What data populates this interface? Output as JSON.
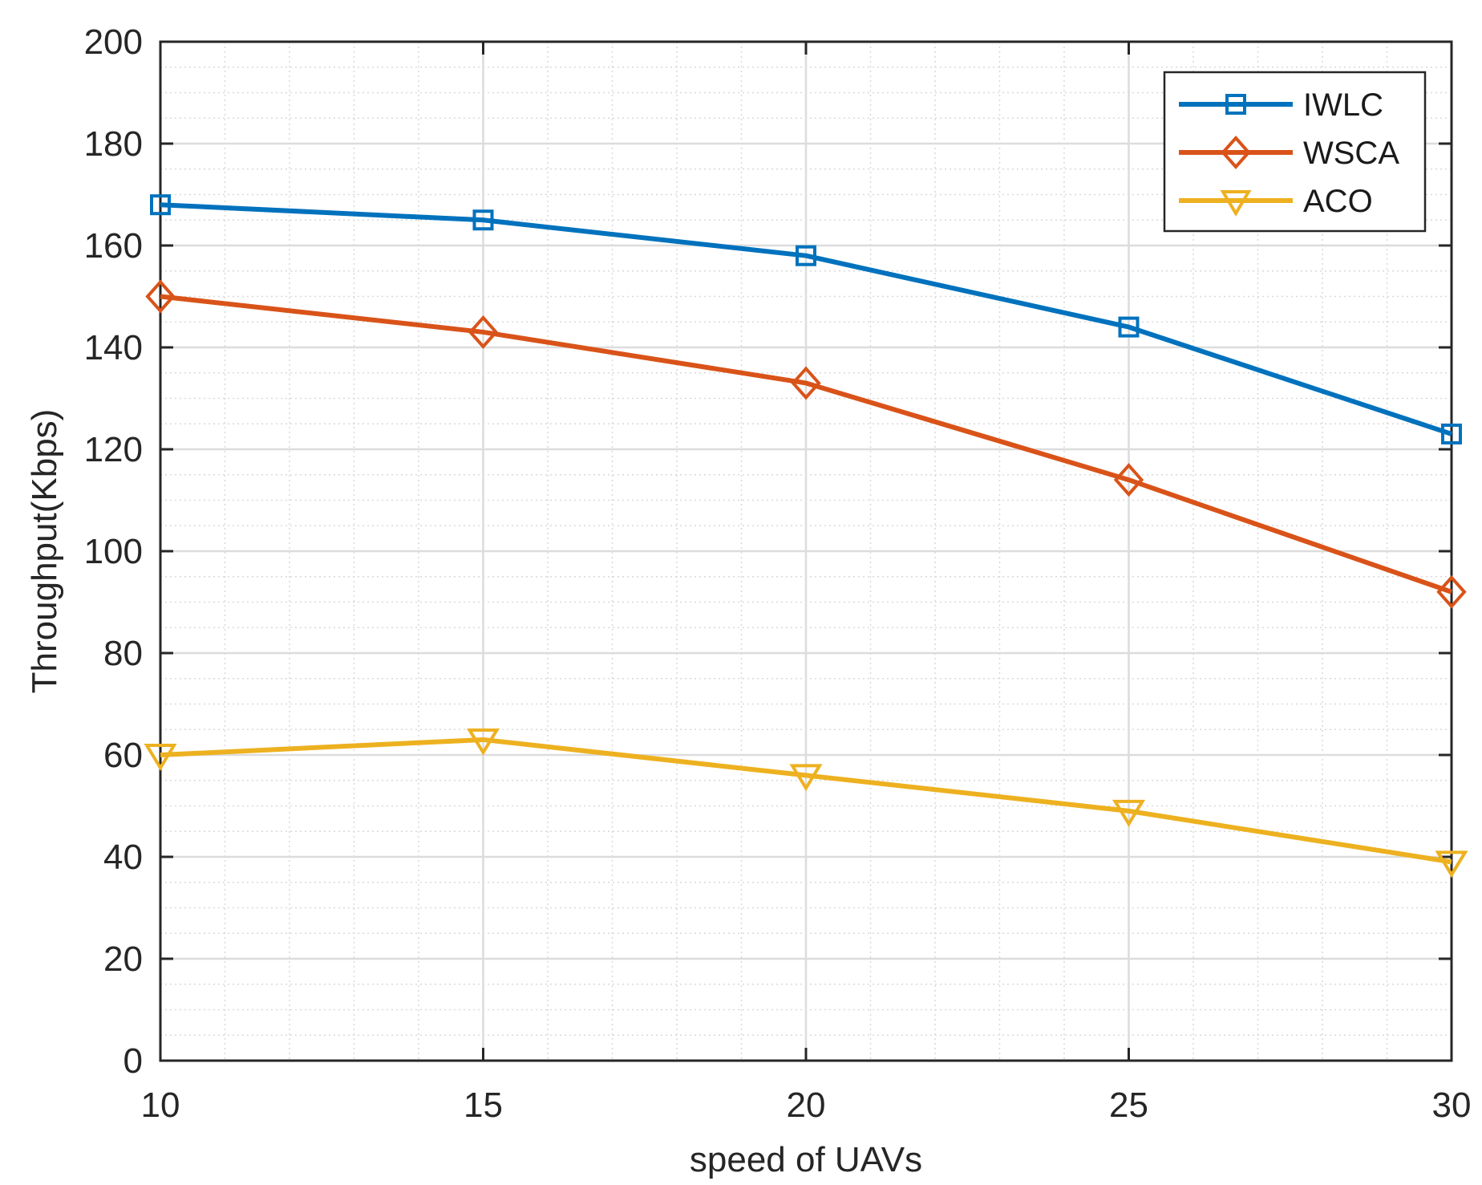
{
  "chart_data": {
    "type": "line",
    "title": "",
    "xlabel": "speed of UAVs",
    "ylabel": "Throughput(Kbps)",
    "x": [
      10,
      15,
      20,
      25,
      30
    ],
    "xlim": [
      10,
      30
    ],
    "ylim": [
      0,
      200
    ],
    "xticks": [
      10,
      15,
      20,
      25,
      30
    ],
    "yticks": [
      0,
      20,
      40,
      60,
      80,
      100,
      120,
      140,
      160,
      180,
      200
    ],
    "grid": true,
    "minor_grid": true,
    "legend_position": "top-right",
    "series": [
      {
        "name": "IWLC",
        "values": [
          168,
          165,
          158,
          144,
          123
        ],
        "color": "#0072BD",
        "marker": "square"
      },
      {
        "name": "WSCA",
        "values": [
          150,
          143,
          133,
          114,
          92
        ],
        "color": "#D95319",
        "marker": "diamond"
      },
      {
        "name": "ACO",
        "values": [
          60,
          63,
          56,
          49,
          39
        ],
        "color": "#EDB120",
        "marker": "triangle-down"
      }
    ]
  }
}
